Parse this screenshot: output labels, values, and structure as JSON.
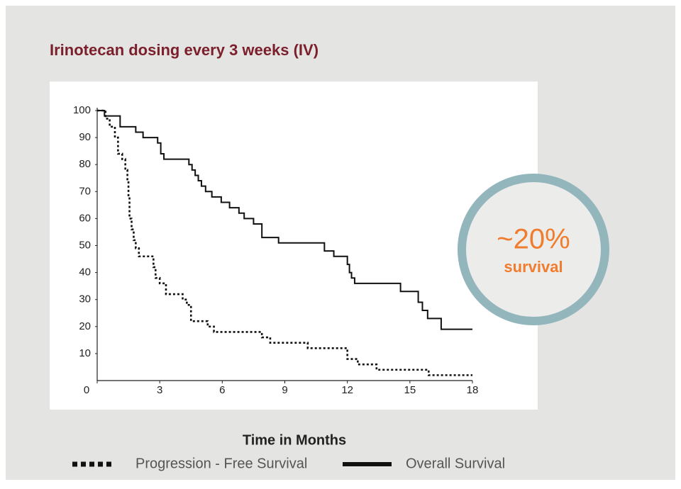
{
  "chart_data": {
    "type": "step",
    "title": "Irinotecan dosing every 3 weeks (IV)",
    "x_label": "Time in Months",
    "xlim": [
      0,
      18
    ],
    "ylim": [
      0,
      100
    ],
    "xticks": [
      0,
      3,
      6,
      9,
      12,
      15,
      18
    ],
    "yticks": [
      10,
      20,
      30,
      40,
      50,
      60,
      70,
      80,
      90,
      100
    ],
    "annotation": [
      "~20%",
      "survival"
    ],
    "series": [
      {
        "name": "Progression - Free Survival",
        "color": "#111111",
        "line_style": "dotted",
        "x": [
          0,
          0.4,
          0.6,
          0.85,
          1.0,
          1.2,
          1.35,
          1.45,
          1.5,
          1.55,
          1.65,
          1.75,
          1.85,
          2.0,
          2.7,
          2.8,
          3.0,
          3.3,
          4.1,
          4.3,
          4.5,
          5.3,
          5.6,
          7.9,
          8.3,
          10.1,
          12.0,
          12.5,
          13.4,
          15.9,
          18
        ],
        "values": [
          100,
          97,
          94,
          90,
          84,
          82,
          78,
          74,
          68,
          60,
          56,
          52,
          49,
          46,
          42,
          38,
          36,
          32,
          30,
          28,
          22,
          20,
          18,
          16,
          14,
          12,
          8,
          6,
          4,
          2,
          2
        ]
      },
      {
        "name": "Overall Survival",
        "color": "#111111",
        "line_style": "solid",
        "x": [
          0,
          0.35,
          1.1,
          1.85,
          2.2,
          2.9,
          3.05,
          3.2,
          4.4,
          4.55,
          4.7,
          4.85,
          5.0,
          5.2,
          5.5,
          5.95,
          6.35,
          6.8,
          7.05,
          7.5,
          7.9,
          8.7,
          10.9,
          11.35,
          12.0,
          12.1,
          12.2,
          12.35,
          14.55,
          15.4,
          15.6,
          15.85,
          16.5,
          18
        ],
        "values": [
          100,
          98,
          94,
          92,
          90,
          88,
          84,
          82,
          80,
          78,
          76,
          74,
          72,
          70,
          68,
          66,
          64,
          62,
          60,
          58,
          53,
          51,
          48,
          46,
          43,
          40,
          38,
          36,
          33,
          29,
          26,
          23,
          19,
          19
        ]
      }
    ]
  }
}
